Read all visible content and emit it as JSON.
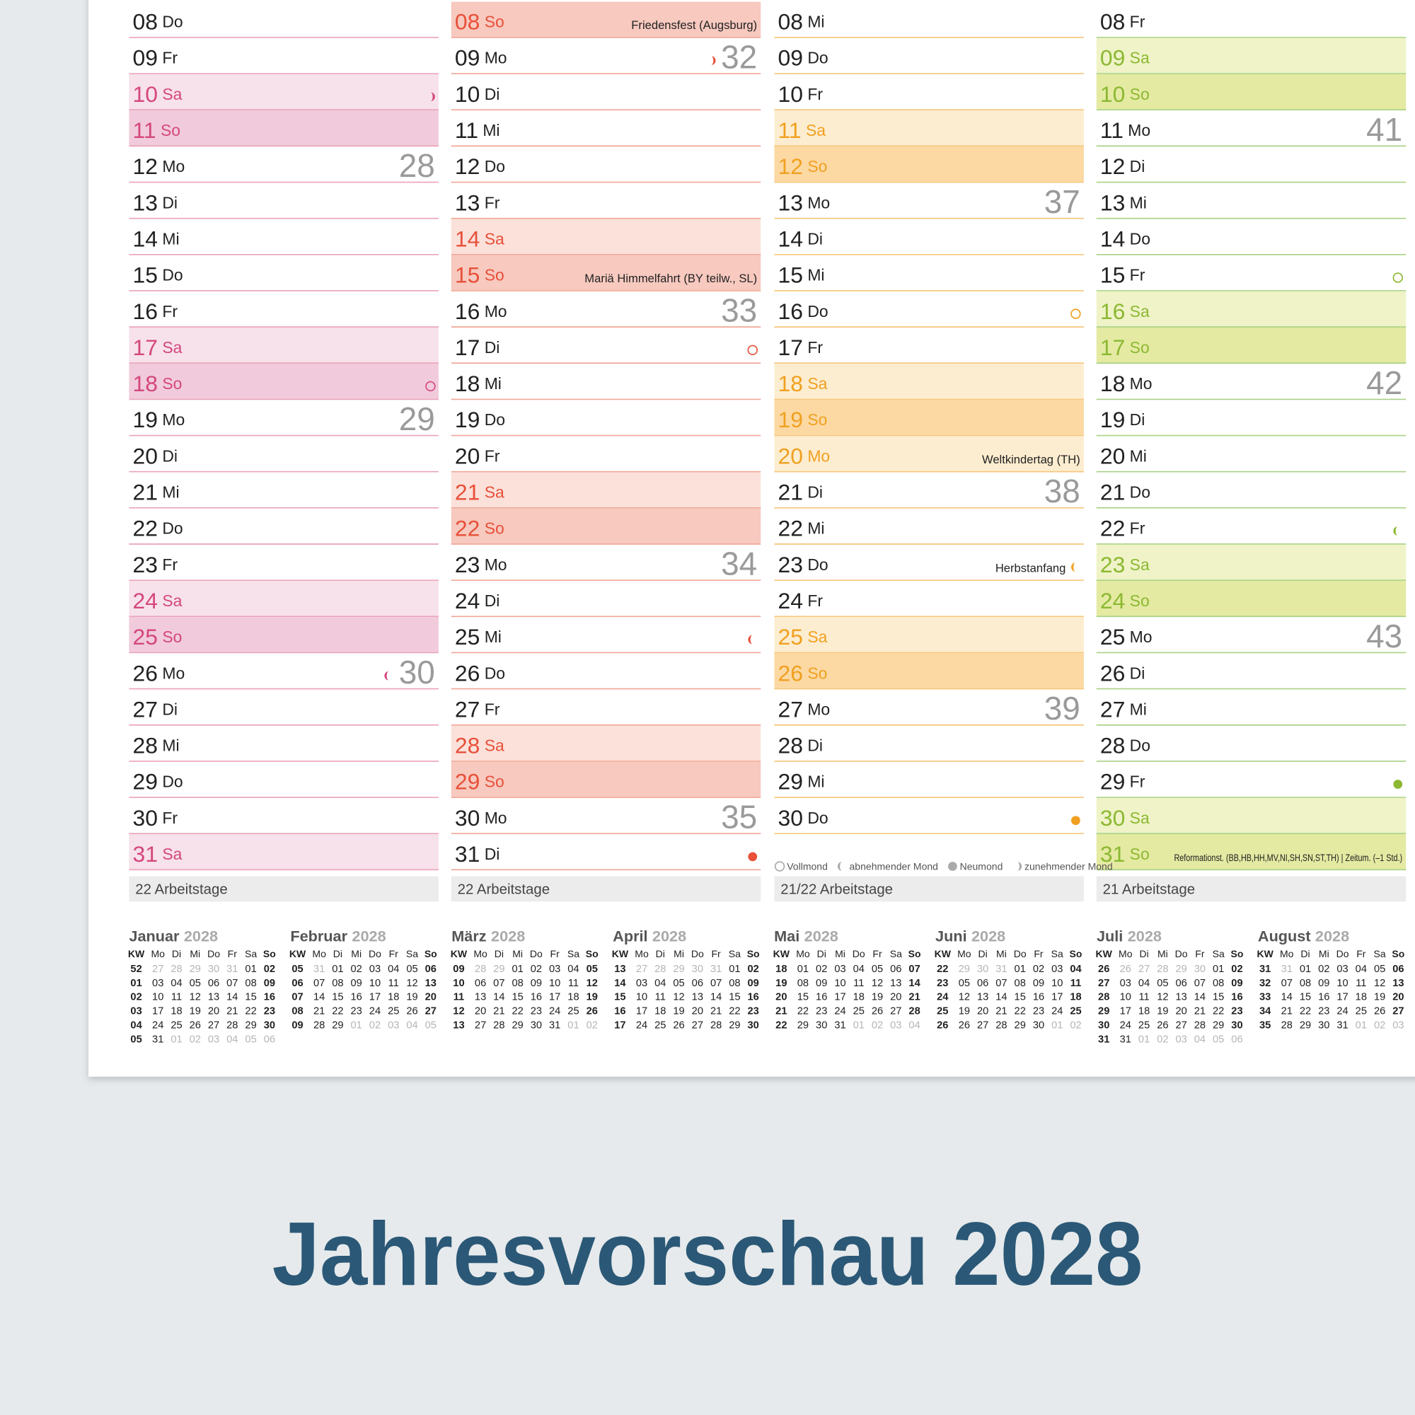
{
  "title": "Jahresvorschau 2028",
  "legend": [
    {
      "label": "Vollmond",
      "moon": "full"
    },
    {
      "label": "abnehmender Mond",
      "moon": "waning"
    },
    {
      "label": "Neumond",
      "moon": "new"
    },
    {
      "label": "zunehmender Mond",
      "moon": "waxing"
    }
  ],
  "columns": [
    {
      "line": "#eaa3b9",
      "light": "#f7e1ea",
      "dark": "#f1cbdb",
      "accent": "#d4477d",
      "footer": "22 Arbeitstage",
      "rows": [
        {
          "day": "08",
          "weekday": "Do"
        },
        {
          "day": "09",
          "weekday": "Fr"
        },
        {
          "day": "10",
          "weekday": "Sa",
          "shade": "light",
          "moon": "waxing"
        },
        {
          "day": "11",
          "weekday": "So",
          "shade": "dark"
        },
        {
          "day": "12",
          "weekday": "Mo",
          "week": "28"
        },
        {
          "day": "13",
          "weekday": "Di"
        },
        {
          "day": "14",
          "weekday": "Mi"
        },
        {
          "day": "15",
          "weekday": "Do"
        },
        {
          "day": "16",
          "weekday": "Fr"
        },
        {
          "day": "17",
          "weekday": "Sa",
          "shade": "light"
        },
        {
          "day": "18",
          "weekday": "So",
          "shade": "dark",
          "moon": "full"
        },
        {
          "day": "19",
          "weekday": "Mo",
          "week": "29"
        },
        {
          "day": "20",
          "weekday": "Di"
        },
        {
          "day": "21",
          "weekday": "Mi"
        },
        {
          "day": "22",
          "weekday": "Do"
        },
        {
          "day": "23",
          "weekday": "Fr"
        },
        {
          "day": "24",
          "weekday": "Sa",
          "shade": "light"
        },
        {
          "day": "25",
          "weekday": "So",
          "shade": "dark"
        },
        {
          "day": "26",
          "weekday": "Mo",
          "week": "30",
          "moon": "waning"
        },
        {
          "day": "27",
          "weekday": "Di"
        },
        {
          "day": "28",
          "weekday": "Mi"
        },
        {
          "day": "29",
          "weekday": "Do"
        },
        {
          "day": "30",
          "weekday": "Fr"
        },
        {
          "day": "31",
          "weekday": "Sa",
          "shade": "light"
        }
      ]
    },
    {
      "line": "#f0a796",
      "light": "#fbe1da",
      "dark": "#f7c9bf",
      "accent": "#e8503a",
      "footer": "22 Arbeitstage",
      "rows": [
        {
          "day": "08",
          "weekday": "So",
          "shade": "dark",
          "note": "Friedensfest (Augsburg)"
        },
        {
          "day": "09",
          "weekday": "Mo",
          "week": "32",
          "moon": "waxing"
        },
        {
          "day": "10",
          "weekday": "Di"
        },
        {
          "day": "11",
          "weekday": "Mi"
        },
        {
          "day": "12",
          "weekday": "Do"
        },
        {
          "day": "13",
          "weekday": "Fr"
        },
        {
          "day": "14",
          "weekday": "Sa",
          "shade": "light"
        },
        {
          "day": "15",
          "weekday": "So",
          "shade": "dark",
          "note": "Mariä Himmelfahrt (BY teilw., SL)"
        },
        {
          "day": "16",
          "weekday": "Mo",
          "week": "33"
        },
        {
          "day": "17",
          "weekday": "Di",
          "moon": "full"
        },
        {
          "day": "18",
          "weekday": "Mi"
        },
        {
          "day": "19",
          "weekday": "Do"
        },
        {
          "day": "20",
          "weekday": "Fr"
        },
        {
          "day": "21",
          "weekday": "Sa",
          "shade": "light"
        },
        {
          "day": "22",
          "weekday": "So",
          "shade": "dark"
        },
        {
          "day": "23",
          "weekday": "Mo",
          "week": "34"
        },
        {
          "day": "24",
          "weekday": "Di"
        },
        {
          "day": "25",
          "weekday": "Mi",
          "moon": "waning"
        },
        {
          "day": "26",
          "weekday": "Do"
        },
        {
          "day": "27",
          "weekday": "Fr"
        },
        {
          "day": "28",
          "weekday": "Sa",
          "shade": "light"
        },
        {
          "day": "29",
          "weekday": "So",
          "shade": "dark"
        },
        {
          "day": "30",
          "weekday": "Mo",
          "week": "35"
        },
        {
          "day": "31",
          "weekday": "Di",
          "moon": "new"
        }
      ]
    },
    {
      "line": "#f5c67a",
      "light": "#fdedd0",
      "dark": "#fcd9a3",
      "accent": "#f0a020",
      "footer": "21/22 Arbeitstage",
      "rows": [
        {
          "day": "08",
          "weekday": "Mi"
        },
        {
          "day": "09",
          "weekday": "Do"
        },
        {
          "day": "10",
          "weekday": "Fr"
        },
        {
          "day": "11",
          "weekday": "Sa",
          "shade": "light"
        },
        {
          "day": "12",
          "weekday": "So",
          "shade": "dark"
        },
        {
          "day": "13",
          "weekday": "Mo",
          "week": "37"
        },
        {
          "day": "14",
          "weekday": "Di"
        },
        {
          "day": "15",
          "weekday": "Mi"
        },
        {
          "day": "16",
          "weekday": "Do",
          "moon": "full"
        },
        {
          "day": "17",
          "weekday": "Fr"
        },
        {
          "day": "18",
          "weekday": "Sa",
          "shade": "light"
        },
        {
          "day": "19",
          "weekday": "So",
          "shade": "dark"
        },
        {
          "day": "20",
          "weekday": "Mo",
          "shade": "light",
          "note": "Weltkindertag (TH)"
        },
        {
          "day": "21",
          "weekday": "Di",
          "week": "38"
        },
        {
          "day": "22",
          "weekday": "Mi"
        },
        {
          "day": "23",
          "weekday": "Do",
          "note": "Herbstanfang",
          "moon": "waning"
        },
        {
          "day": "24",
          "weekday": "Fr"
        },
        {
          "day": "25",
          "weekday": "Sa",
          "shade": "light"
        },
        {
          "day": "26",
          "weekday": "So",
          "shade": "dark"
        },
        {
          "day": "27",
          "weekday": "Mo",
          "week": "39"
        },
        {
          "day": "28",
          "weekday": "Di"
        },
        {
          "day": "29",
          "weekday": "Mi"
        },
        {
          "day": "30",
          "weekday": "Do",
          "moon": "new"
        }
      ]
    },
    {
      "line": "#a9d184",
      "light": "#eff3c7",
      "dark": "#e4eaa2",
      "accent": "#8cb832",
      "footer": "21 Arbeitstage",
      "rows": [
        {
          "day": "08",
          "weekday": "Fr"
        },
        {
          "day": "09",
          "weekday": "Sa",
          "shade": "light"
        },
        {
          "day": "10",
          "weekday": "So",
          "shade": "dark"
        },
        {
          "day": "11",
          "weekday": "Mo",
          "week": "41"
        },
        {
          "day": "12",
          "weekday": "Di"
        },
        {
          "day": "13",
          "weekday": "Mi"
        },
        {
          "day": "14",
          "weekday": "Do"
        },
        {
          "day": "15",
          "weekday": "Fr",
          "moon": "full"
        },
        {
          "day": "16",
          "weekday": "Sa",
          "shade": "light"
        },
        {
          "day": "17",
          "weekday": "So",
          "shade": "dark"
        },
        {
          "day": "18",
          "weekday": "Mo",
          "week": "42"
        },
        {
          "day": "19",
          "weekday": "Di"
        },
        {
          "day": "20",
          "weekday": "Mi"
        },
        {
          "day": "21",
          "weekday": "Do"
        },
        {
          "day": "22",
          "weekday": "Fr",
          "moon": "waning"
        },
        {
          "day": "23",
          "weekday": "Sa",
          "shade": "light"
        },
        {
          "day": "24",
          "weekday": "So",
          "shade": "dark"
        },
        {
          "day": "25",
          "weekday": "Mo",
          "week": "43"
        },
        {
          "day": "26",
          "weekday": "Di"
        },
        {
          "day": "27",
          "weekday": "Mi"
        },
        {
          "day": "28",
          "weekday": "Do"
        },
        {
          "day": "29",
          "weekday": "Fr",
          "moon": "new"
        },
        {
          "day": "30",
          "weekday": "Sa",
          "shade": "light"
        },
        {
          "day": "31",
          "weekday": "So",
          "shade": "dark",
          "note": "Reformationst. (BB,HB,HH,MV,NI,SH,SN,ST,TH) | Zeitum. (–1 Std.)"
        }
      ]
    }
  ],
  "mini_header": [
    "KW",
    "Mo",
    "Di",
    "Mi",
    "Do",
    "Fr",
    "Sa",
    "So"
  ],
  "mini_months": [
    {
      "name": "Januar",
      "year": "2028",
      "weeks": [
        [
          "52",
          "27",
          "28",
          "29",
          "30",
          "31",
          "01",
          "02"
        ],
        [
          "01",
          "03",
          "04",
          "05",
          "06",
          "07",
          "08",
          "09"
        ],
        [
          "02",
          "10",
          "11",
          "12",
          "13",
          "14",
          "15",
          "16"
        ],
        [
          "03",
          "17",
          "18",
          "19",
          "20",
          "21",
          "22",
          "23"
        ],
        [
          "04",
          "24",
          "25",
          "26",
          "27",
          "28",
          "29",
          "30"
        ],
        [
          "05",
          "31",
          "01",
          "02",
          "03",
          "04",
          "05",
          "06"
        ]
      ]
    },
    {
      "name": "Februar",
      "year": "2028",
      "weeks": [
        [
          "05",
          "31",
          "01",
          "02",
          "03",
          "04",
          "05",
          "06"
        ],
        [
          "06",
          "07",
          "08",
          "09",
          "10",
          "11",
          "12",
          "13"
        ],
        [
          "07",
          "14",
          "15",
          "16",
          "17",
          "18",
          "19",
          "20"
        ],
        [
          "08",
          "21",
          "22",
          "23",
          "24",
          "25",
          "26",
          "27"
        ],
        [
          "09",
          "28",
          "29",
          "01",
          "02",
          "03",
          "04",
          "05"
        ]
      ]
    },
    {
      "name": "März",
      "year": "2028",
      "weeks": [
        [
          "09",
          "28",
          "29",
          "01",
          "02",
          "03",
          "04",
          "05"
        ],
        [
          "10",
          "06",
          "07",
          "08",
          "09",
          "10",
          "11",
          "12"
        ],
        [
          "11",
          "13",
          "14",
          "15",
          "16",
          "17",
          "18",
          "19"
        ],
        [
          "12",
          "20",
          "21",
          "22",
          "23",
          "24",
          "25",
          "26"
        ],
        [
          "13",
          "27",
          "28",
          "29",
          "30",
          "31",
          "01",
          "02"
        ]
      ]
    },
    {
      "name": "April",
      "year": "2028",
      "weeks": [
        [
          "13",
          "27",
          "28",
          "29",
          "30",
          "31",
          "01",
          "02"
        ],
        [
          "14",
          "03",
          "04",
          "05",
          "06",
          "07",
          "08",
          "09"
        ],
        [
          "15",
          "10",
          "11",
          "12",
          "13",
          "14",
          "15",
          "16"
        ],
        [
          "16",
          "17",
          "18",
          "19",
          "20",
          "21",
          "22",
          "23"
        ],
        [
          "17",
          "24",
          "25",
          "26",
          "27",
          "28",
          "29",
          "30"
        ]
      ]
    },
    {
      "name": "Mai",
      "year": "2028",
      "weeks": [
        [
          "18",
          "01",
          "02",
          "03",
          "04",
          "05",
          "06",
          "07"
        ],
        [
          "19",
          "08",
          "09",
          "10",
          "11",
          "12",
          "13",
          "14"
        ],
        [
          "20",
          "15",
          "16",
          "17",
          "18",
          "19",
          "20",
          "21"
        ],
        [
          "21",
          "22",
          "23",
          "24",
          "25",
          "26",
          "27",
          "28"
        ],
        [
          "22",
          "29",
          "30",
          "31",
          "01",
          "02",
          "03",
          "04"
        ]
      ]
    },
    {
      "name": "Juni",
      "year": "2028",
      "weeks": [
        [
          "22",
          "29",
          "30",
          "31",
          "01",
          "02",
          "03",
          "04"
        ],
        [
          "23",
          "05",
          "06",
          "07",
          "08",
          "09",
          "10",
          "11"
        ],
        [
          "24",
          "12",
          "13",
          "14",
          "15",
          "16",
          "17",
          "18"
        ],
        [
          "25",
          "19",
          "20",
          "21",
          "22",
          "23",
          "24",
          "25"
        ],
        [
          "26",
          "26",
          "27",
          "28",
          "29",
          "30",
          "01",
          "02"
        ]
      ]
    },
    {
      "name": "Juli",
      "year": "2028",
      "weeks": [
        [
          "26",
          "26",
          "27",
          "28",
          "29",
          "30",
          "01",
          "02"
        ],
        [
          "27",
          "03",
          "04",
          "05",
          "06",
          "07",
          "08",
          "09"
        ],
        [
          "28",
          "10",
          "11",
          "12",
          "13",
          "14",
          "15",
          "16"
        ],
        [
          "29",
          "17",
          "18",
          "19",
          "20",
          "21",
          "22",
          "23"
        ],
        [
          "30",
          "24",
          "25",
          "26",
          "27",
          "28",
          "29",
          "30"
        ],
        [
          "31",
          "31",
          "01",
          "02",
          "03",
          "04",
          "05",
          "06"
        ]
      ]
    },
    {
      "name": "August",
      "year": "2028",
      "weeks": [
        [
          "31",
          "31",
          "01",
          "02",
          "03",
          "04",
          "05",
          "06"
        ],
        [
          "32",
          "07",
          "08",
          "09",
          "10",
          "11",
          "12",
          "13"
        ],
        [
          "33",
          "14",
          "15",
          "16",
          "17",
          "18",
          "19",
          "20"
        ],
        [
          "34",
          "21",
          "22",
          "23",
          "24",
          "25",
          "26",
          "27"
        ],
        [
          "35",
          "28",
          "29",
          "30",
          "31",
          "01",
          "02",
          "03"
        ]
      ]
    }
  ]
}
